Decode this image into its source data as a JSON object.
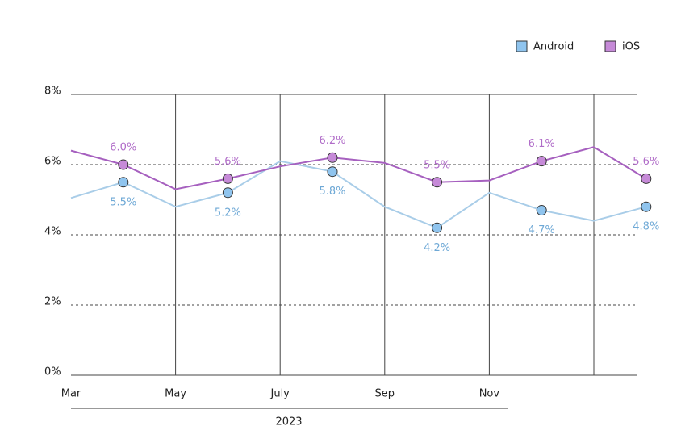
{
  "chart_data": {
    "type": "line",
    "categories": [
      "Mar",
      null,
      "May",
      null,
      "July",
      null,
      "Sep",
      null,
      "Nov",
      null,
      null,
      null
    ],
    "xlabel": "2023",
    "series": [
      {
        "name": "Android",
        "color": "#a9cde8",
        "marker_color": "#8fc4ee",
        "label_color": "#6fa9d6",
        "values": [
          5.05,
          5.5,
          4.8,
          5.2,
          6.1,
          5.8,
          4.8,
          4.2,
          5.2,
          4.7,
          4.4,
          4.8
        ],
        "value_labels": [
          null,
          "5.5%",
          null,
          "5.2%",
          null,
          "5.8%",
          null,
          "4.2%",
          null,
          "4.7%",
          null,
          "4.8%"
        ]
      },
      {
        "name": "iOS",
        "color": "#a660bf",
        "marker_color": "#c68ad8",
        "label_color": "#b06cc8",
        "values": [
          6.4,
          6.0,
          5.3,
          5.6,
          5.95,
          6.2,
          6.05,
          5.5,
          5.55,
          6.1,
          6.5,
          5.6
        ],
        "value_labels": [
          null,
          "6.0%",
          null,
          "5.6%",
          null,
          "6.2%",
          null,
          "5.5%",
          null,
          "6.1%",
          null,
          "5.6%"
        ]
      }
    ],
    "ylim": [
      0,
      8
    ],
    "yticks": [
      {
        "value": 0,
        "label": "0%"
      },
      {
        "value": 2,
        "label": "2%"
      },
      {
        "value": 4,
        "label": "4%"
      },
      {
        "value": 6,
        "label": "6%"
      },
      {
        "value": 8,
        "label": "8%"
      }
    ],
    "grid": true,
    "legend": "top-right"
  }
}
